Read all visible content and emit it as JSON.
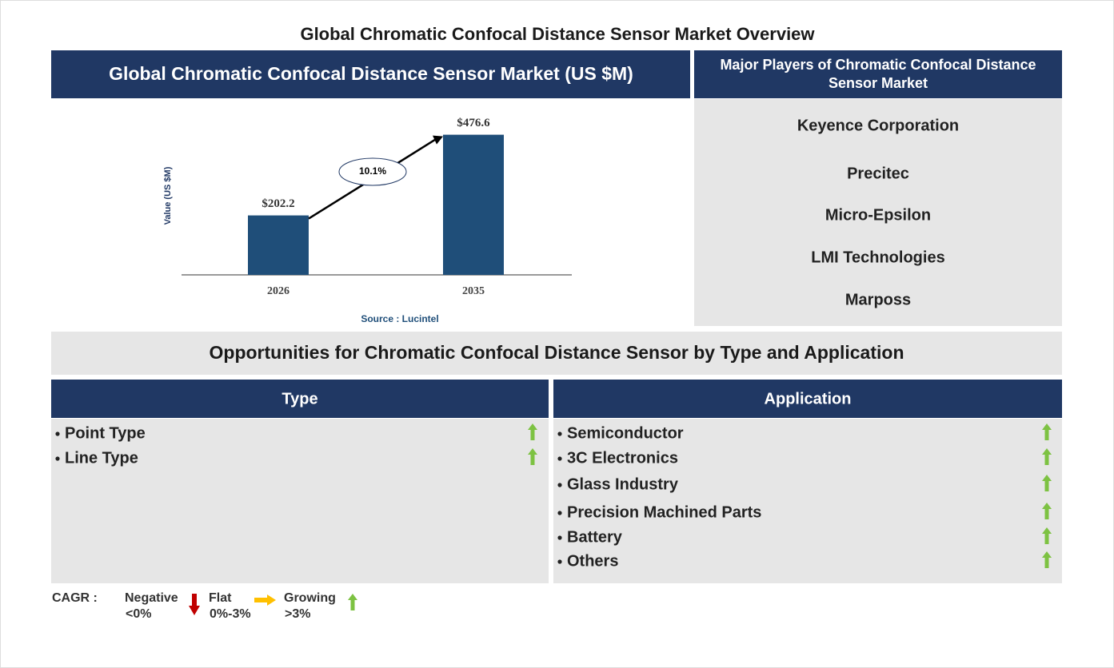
{
  "title": "Global Chromatic Confocal Distance Sensor Market Overview",
  "chart_data": {
    "type": "bar",
    "title": "Global Chromatic Confocal Distance Sensor Market (US $M)",
    "y_label": "Value (US $M)",
    "categories": [
      "2026",
      "2035"
    ],
    "values": [
      202.2,
      476.6
    ],
    "value_labels": [
      "$202.2",
      "$476.6"
    ],
    "color": "#1f4e79",
    "ylim": [
      0,
      500
    ],
    "annotation": "10.1%",
    "source": "Source : Lucintel"
  },
  "players": {
    "title": "Major Players of Chromatic Confocal Distance Sensor Market",
    "items": [
      "Keyence Corporation",
      "Precitec",
      "Micro-Epsilon",
      "LMI Technologies",
      "Marposs"
    ]
  },
  "opportunities": {
    "title": "Opportunities for Chromatic Confocal Distance Sensor by Type and Application",
    "type": {
      "title": "Type",
      "items": [
        "Point Type",
        "Line Type"
      ]
    },
    "application": {
      "title": "Application",
      "items": [
        "Semiconductor",
        "3C Electronics",
        "Glass Industry",
        "Precision Machined Parts",
        "Battery",
        "Others"
      ]
    }
  },
  "legend": {
    "label": "CAGR :",
    "items": [
      {
        "name": "Negative",
        "range": "<0%"
      },
      {
        "name": "Flat",
        "range": "0%-3%"
      },
      {
        "name": "Growing",
        "range": ">3%"
      }
    ]
  }
}
